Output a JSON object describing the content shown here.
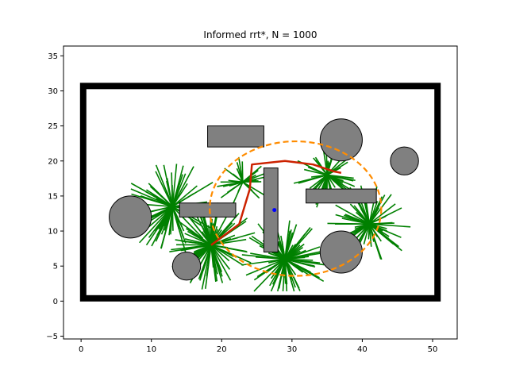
{
  "chart_data": {
    "type": "scatter",
    "title": "Informed rrt*, N = 1000",
    "xlabel": "",
    "ylabel": "",
    "xlim": [
      -2.5,
      53.5
    ],
    "ylim": [
      -5.4,
      36.4
    ],
    "x_ticks": [
      0,
      10,
      20,
      30,
      40,
      50
    ],
    "y_ticks": [
      -5,
      0,
      5,
      10,
      15,
      20,
      25,
      30,
      35
    ],
    "grid": false,
    "legend": "none",
    "boundary": {
      "x0": 0.3,
      "y0": 0.4,
      "x1": 50.7,
      "y1": 30.7
    },
    "rect_obstacles": [
      {
        "x0": 18,
        "y0": 22,
        "x1": 26,
        "y1": 25
      },
      {
        "x0": 14,
        "y0": 12,
        "x1": 22,
        "y1": 14
      },
      {
        "x0": 26,
        "y0": 7,
        "x1": 28,
        "y1": 19
      },
      {
        "x0": 32,
        "y0": 14,
        "x1": 42,
        "y1": 16
      }
    ],
    "circle_obstacles": [
      {
        "cx": 7,
        "cy": 12,
        "r": 3
      },
      {
        "cx": 15,
        "cy": 5,
        "r": 2
      },
      {
        "cx": 37,
        "cy": 23,
        "r": 3
      },
      {
        "cx": 46,
        "cy": 20,
        "r": 2
      },
      {
        "cx": 37,
        "cy": 7,
        "r": 3
      }
    ],
    "tree_hubs": [
      {
        "x": 13,
        "y": 13.5,
        "n": 70,
        "spread": 7
      },
      {
        "x": 18.5,
        "y": 8,
        "n": 90,
        "spread": 6.5
      },
      {
        "x": 29,
        "y": 6,
        "n": 80,
        "spread": 6.5
      },
      {
        "x": 41,
        "y": 11,
        "n": 60,
        "spread": 6
      },
      {
        "x": 35,
        "y": 18,
        "n": 45,
        "spread": 5
      },
      {
        "x": 23,
        "y": 17,
        "n": 30,
        "spread": 4
      }
    ],
    "path": {
      "x": [
        18.5,
        22.5,
        24,
        24.3,
        29,
        33,
        36,
        37
      ],
      "y": [
        8,
        11,
        16,
        19.5,
        20,
        19.5,
        18.5,
        18.3
      ]
    },
    "ellipse": {
      "cx": 30.5,
      "cy": 13.2,
      "rx": 12.2,
      "ry": 9.6
    },
    "center_point": {
      "x": 27.5,
      "y": 13
    },
    "colors": {
      "tree": "#008000",
      "path": "#cc2200",
      "ellipse": "#ff8c00",
      "obstacle_fill": "#808080",
      "boundary": "#000000",
      "center": "#0000ff"
    }
  }
}
